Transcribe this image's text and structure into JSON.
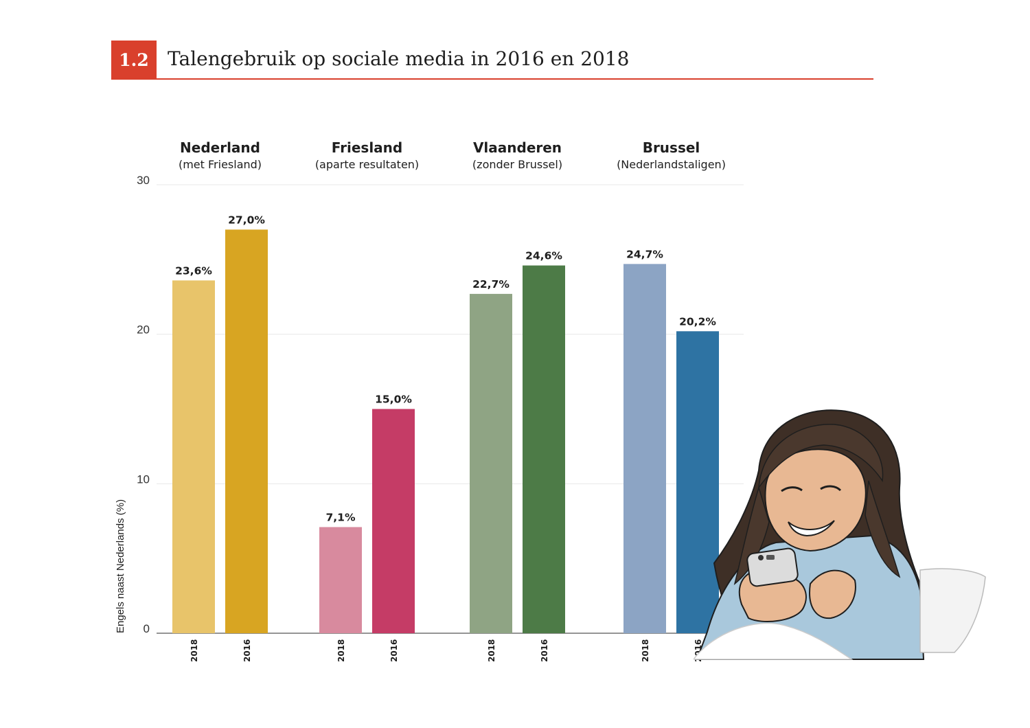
{
  "header": {
    "number": "1.2",
    "title": "Talengebruik op sociale media in 2016 en 2018"
  },
  "chart_data": {
    "type": "bar",
    "title": "Talengebruik op sociale media in 2016 en 2018",
    "ylabel": "Engels naast Nederlands (%)",
    "ylim": [
      0,
      30
    ],
    "yticks": [
      0,
      10,
      20,
      30
    ],
    "grid": true,
    "groups": [
      {
        "name": "Nederland",
        "subtitle": "(met Friesland)",
        "bars": [
          {
            "year": "2018",
            "value": 23.6,
            "label": "23,6%",
            "color": "#e8c46a"
          },
          {
            "year": "2016",
            "value": 27.0,
            "label": "27,0%",
            "color": "#d8a522"
          }
        ]
      },
      {
        "name": "Friesland",
        "subtitle": "(aparte resultaten)",
        "bars": [
          {
            "year": "2018",
            "value": 7.1,
            "label": "7,1%",
            "color": "#d88a9e"
          },
          {
            "year": "2016",
            "value": 15.0,
            "label": "15,0%",
            "color": "#c53c66"
          }
        ]
      },
      {
        "name": "Vlaanderen",
        "subtitle": "(zonder Brussel)",
        "bars": [
          {
            "year": "2018",
            "value": 22.7,
            "label": "22,7%",
            "color": "#8fa484"
          },
          {
            "year": "2016",
            "value": 24.6,
            "label": "24,6%",
            "color": "#4d7b47"
          }
        ]
      },
      {
        "name": "Brussel",
        "subtitle": "(Nederlandstaligen)",
        "bars": [
          {
            "year": "2018",
            "value": 24.7,
            "label": "24,7%",
            "color": "#8ca4c4"
          },
          {
            "year": "2016",
            "value": 20.2,
            "label": "20,2%",
            "color": "#2e73a3"
          }
        ]
      }
    ]
  }
}
